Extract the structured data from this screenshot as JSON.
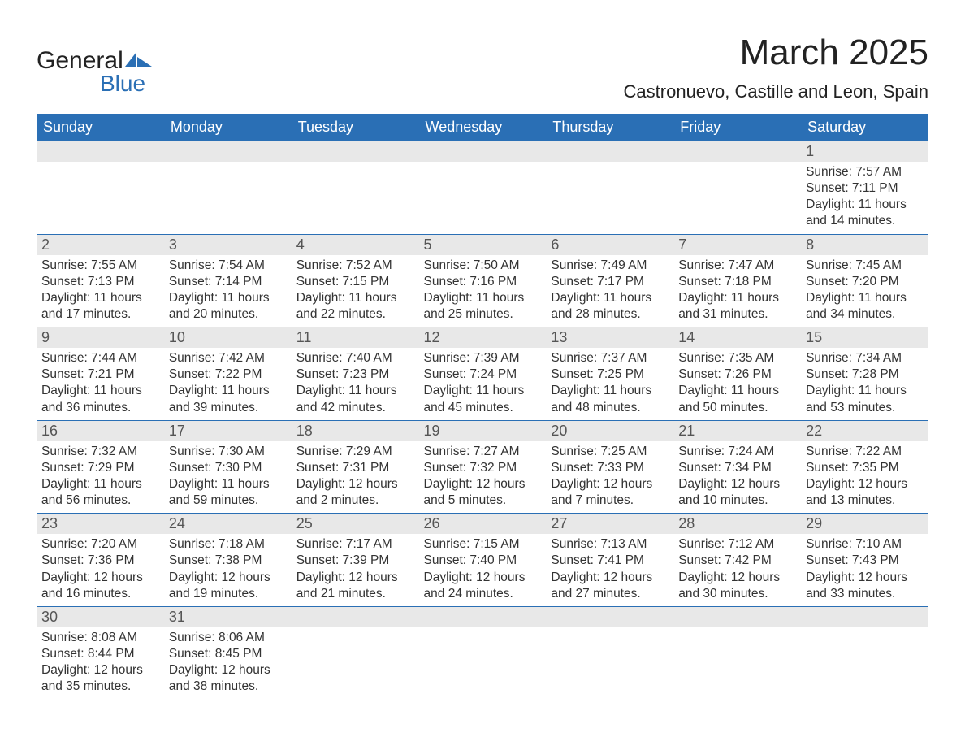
{
  "logo": {
    "text_black": "General",
    "text_blue": "Blue",
    "brand_color": "#2a6fb5"
  },
  "title": "March 2025",
  "location": "Castronuevo, Castille and Leon, Spain",
  "dow": [
    "Sunday",
    "Monday",
    "Tuesday",
    "Wednesday",
    "Thursday",
    "Friday",
    "Saturday"
  ],
  "colors": {
    "header_bg": "#2a6fb5",
    "header_fg": "#ffffff",
    "daynum_bg": "#e8e8e8",
    "rule": "#2a6fb5",
    "text": "#333333"
  },
  "weeks": [
    [
      {
        "blank": true
      },
      {
        "blank": true
      },
      {
        "blank": true
      },
      {
        "blank": true
      },
      {
        "blank": true
      },
      {
        "blank": true
      },
      {
        "n": "1",
        "sunrise": "7:57 AM",
        "sunset": "7:11 PM",
        "daylight": "11 hours and 14 minutes."
      }
    ],
    [
      {
        "n": "2",
        "sunrise": "7:55 AM",
        "sunset": "7:13 PM",
        "daylight": "11 hours and 17 minutes."
      },
      {
        "n": "3",
        "sunrise": "7:54 AM",
        "sunset": "7:14 PM",
        "daylight": "11 hours and 20 minutes."
      },
      {
        "n": "4",
        "sunrise": "7:52 AM",
        "sunset": "7:15 PM",
        "daylight": "11 hours and 22 minutes."
      },
      {
        "n": "5",
        "sunrise": "7:50 AM",
        "sunset": "7:16 PM",
        "daylight": "11 hours and 25 minutes."
      },
      {
        "n": "6",
        "sunrise": "7:49 AM",
        "sunset": "7:17 PM",
        "daylight": "11 hours and 28 minutes."
      },
      {
        "n": "7",
        "sunrise": "7:47 AM",
        "sunset": "7:18 PM",
        "daylight": "11 hours and 31 minutes."
      },
      {
        "n": "8",
        "sunrise": "7:45 AM",
        "sunset": "7:20 PM",
        "daylight": "11 hours and 34 minutes."
      }
    ],
    [
      {
        "n": "9",
        "sunrise": "7:44 AM",
        "sunset": "7:21 PM",
        "daylight": "11 hours and 36 minutes."
      },
      {
        "n": "10",
        "sunrise": "7:42 AM",
        "sunset": "7:22 PM",
        "daylight": "11 hours and 39 minutes."
      },
      {
        "n": "11",
        "sunrise": "7:40 AM",
        "sunset": "7:23 PM",
        "daylight": "11 hours and 42 minutes."
      },
      {
        "n": "12",
        "sunrise": "7:39 AM",
        "sunset": "7:24 PM",
        "daylight": "11 hours and 45 minutes."
      },
      {
        "n": "13",
        "sunrise": "7:37 AM",
        "sunset": "7:25 PM",
        "daylight": "11 hours and 48 minutes."
      },
      {
        "n": "14",
        "sunrise": "7:35 AM",
        "sunset": "7:26 PM",
        "daylight": "11 hours and 50 minutes."
      },
      {
        "n": "15",
        "sunrise": "7:34 AM",
        "sunset": "7:28 PM",
        "daylight": "11 hours and 53 minutes."
      }
    ],
    [
      {
        "n": "16",
        "sunrise": "7:32 AM",
        "sunset": "7:29 PM",
        "daylight": "11 hours and 56 minutes."
      },
      {
        "n": "17",
        "sunrise": "7:30 AM",
        "sunset": "7:30 PM",
        "daylight": "11 hours and 59 minutes."
      },
      {
        "n": "18",
        "sunrise": "7:29 AM",
        "sunset": "7:31 PM",
        "daylight": "12 hours and 2 minutes."
      },
      {
        "n": "19",
        "sunrise": "7:27 AM",
        "sunset": "7:32 PM",
        "daylight": "12 hours and 5 minutes."
      },
      {
        "n": "20",
        "sunrise": "7:25 AM",
        "sunset": "7:33 PM",
        "daylight": "12 hours and 7 minutes."
      },
      {
        "n": "21",
        "sunrise": "7:24 AM",
        "sunset": "7:34 PM",
        "daylight": "12 hours and 10 minutes."
      },
      {
        "n": "22",
        "sunrise": "7:22 AM",
        "sunset": "7:35 PM",
        "daylight": "12 hours and 13 minutes."
      }
    ],
    [
      {
        "n": "23",
        "sunrise": "7:20 AM",
        "sunset": "7:36 PM",
        "daylight": "12 hours and 16 minutes."
      },
      {
        "n": "24",
        "sunrise": "7:18 AM",
        "sunset": "7:38 PM",
        "daylight": "12 hours and 19 minutes."
      },
      {
        "n": "25",
        "sunrise": "7:17 AM",
        "sunset": "7:39 PM",
        "daylight": "12 hours and 21 minutes."
      },
      {
        "n": "26",
        "sunrise": "7:15 AM",
        "sunset": "7:40 PM",
        "daylight": "12 hours and 24 minutes."
      },
      {
        "n": "27",
        "sunrise": "7:13 AM",
        "sunset": "7:41 PM",
        "daylight": "12 hours and 27 minutes."
      },
      {
        "n": "28",
        "sunrise": "7:12 AM",
        "sunset": "7:42 PM",
        "daylight": "12 hours and 30 minutes."
      },
      {
        "n": "29",
        "sunrise": "7:10 AM",
        "sunset": "7:43 PM",
        "daylight": "12 hours and 33 minutes."
      }
    ],
    [
      {
        "n": "30",
        "sunrise": "8:08 AM",
        "sunset": "8:44 PM",
        "daylight": "12 hours and 35 minutes."
      },
      {
        "n": "31",
        "sunrise": "8:06 AM",
        "sunset": "8:45 PM",
        "daylight": "12 hours and 38 minutes."
      },
      {
        "blank": true
      },
      {
        "blank": true
      },
      {
        "blank": true
      },
      {
        "blank": true
      },
      {
        "blank": true
      }
    ]
  ],
  "labels": {
    "sunrise": "Sunrise:",
    "sunset": "Sunset:",
    "daylight": "Daylight:"
  }
}
